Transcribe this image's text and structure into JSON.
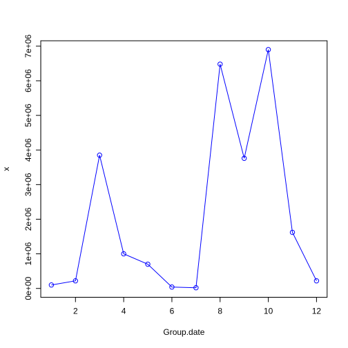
{
  "chart_data": {
    "type": "line",
    "title": "",
    "xlabel": "Group.date",
    "ylabel": "x",
    "x": [
      1,
      2,
      3,
      4,
      5,
      6,
      7,
      8,
      9,
      10,
      11,
      12
    ],
    "series": [
      {
        "color": "#0000ff",
        "marker": "open-circle",
        "values": [
          100000,
          220000,
          3850000,
          1000000,
          700000,
          40000,
          20000,
          6480000,
          3760000,
          6900000,
          1620000,
          220000
        ]
      }
    ],
    "xticks": [
      2,
      4,
      6,
      8,
      10,
      12
    ],
    "xtick_labels": [
      "2",
      "4",
      "6",
      "8",
      "10",
      "12"
    ],
    "yticks": [
      0,
      1000000,
      2000000,
      3000000,
      4000000,
      5000000,
      6000000,
      7000000
    ],
    "ytick_labels": [
      "0e+00",
      "1e+06",
      "2e+06",
      "3e+06",
      "4e+06",
      "5e+06",
      "6e+06",
      "7e+06"
    ],
    "xlim": [
      0.56,
      12.44
    ],
    "ylim": [
      -256000,
      7156000
    ],
    "grid": false,
    "legend": "none"
  }
}
